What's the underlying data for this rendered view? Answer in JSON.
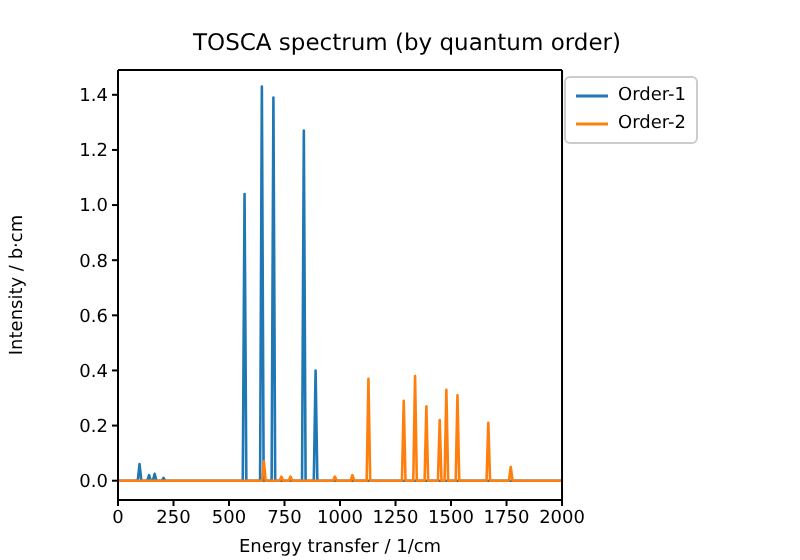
{
  "chart_data": {
    "type": "line",
    "title": "TOSCA spectrum (by quantum order)",
    "xlabel": "Energy transfer / 1/cm",
    "ylabel": "Intensity / b·cm",
    "series": [
      {
        "name": "Order-1",
        "color": "#1f77b4",
        "x": [
          0,
          89,
          97,
          105,
          132,
          140,
          148,
          157,
          165,
          173,
          197,
          205,
          213,
          562,
          570,
          578,
          640,
          648,
          656,
          692,
          700,
          708,
          829,
          837,
          845,
          882,
          890,
          898,
          2000
        ],
        "values": [
          0,
          0,
          0.06,
          0,
          0,
          0.02,
          0,
          0,
          0.025,
          0,
          0,
          0.01,
          0,
          0,
          1.04,
          0,
          0,
          1.43,
          0,
          0,
          1.39,
          0,
          0,
          1.27,
          0,
          0,
          0.4,
          0,
          0
        ]
      },
      {
        "name": "Order-2",
        "color": "#ff7f0e",
        "x": [
          0,
          649,
          657,
          665,
          728,
          736,
          744,
          769,
          777,
          785,
          969,
          977,
          985,
          1048,
          1056,
          1064,
          1120,
          1128,
          1136,
          1279,
          1287,
          1295,
          1330,
          1338,
          1346,
          1381,
          1389,
          1397,
          1441,
          1449,
          1457,
          1471,
          1479,
          1487,
          1521,
          1529,
          1537,
          1660,
          1668,
          1676,
          1761,
          1769,
          1777,
          2000
        ],
        "values": [
          0,
          0,
          0.07,
          0,
          0,
          0.015,
          0,
          0,
          0.015,
          0,
          0,
          0.015,
          0,
          0,
          0.02,
          0,
          0,
          0.37,
          0,
          0,
          0.29,
          0,
          0,
          0.38,
          0,
          0,
          0.27,
          0,
          0,
          0.22,
          0,
          0,
          0.33,
          0,
          0,
          0.31,
          0,
          0,
          0.21,
          0,
          0,
          0.05,
          0,
          0
        ]
      }
    ],
    "xlim": [
      0,
      2000
    ],
    "xticks": [
      0,
      250,
      500,
      750,
      1000,
      1250,
      1500,
      1750,
      2000
    ],
    "ylim": [
      -0.07,
      1.49
    ],
    "yticks": [
      {
        "value": 0,
        "label": "0.0"
      },
      {
        "value": 0.2,
        "label": "0.2"
      },
      {
        "value": 0.4,
        "label": "0.4"
      },
      {
        "value": 0.6,
        "label": "0.6"
      },
      {
        "value": 0.8,
        "label": "0.8"
      },
      {
        "value": 1,
        "label": "1.0"
      },
      {
        "value": 1.2,
        "label": "1.2"
      },
      {
        "value": 1.4,
        "label": "1.4"
      }
    ],
    "legend": "top right",
    "grid": false
  }
}
